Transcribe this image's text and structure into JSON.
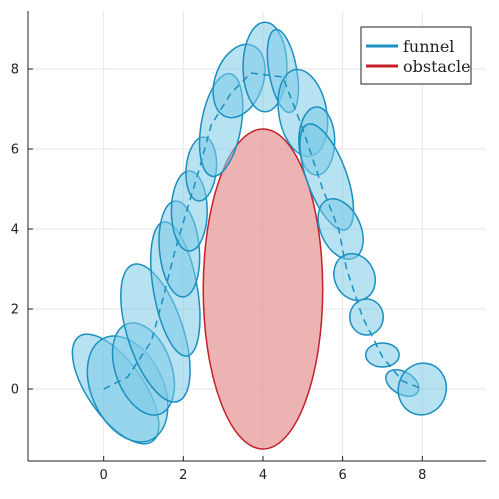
{
  "chart_data": {
    "type": "scatter",
    "xlim": [
      -1.9,
      9.6
    ],
    "ylim": [
      -1.8,
      9.45
    ],
    "xticks": [
      0,
      2,
      4,
      6,
      8
    ],
    "yticks": [
      0,
      2,
      4,
      6,
      8
    ],
    "xtick_labels": [
      "0",
      "2",
      "4",
      "6",
      "8"
    ],
    "ytick_labels": [
      "0",
      "2",
      "4",
      "6",
      "8"
    ],
    "grid": true,
    "legend_position": "top-right",
    "legend": [
      {
        "label": "funnel",
        "color": "#1a8fc0"
      },
      {
        "label": "obstacle",
        "color": "#c4202a"
      }
    ],
    "colors": {
      "funnel_stroke": "#1a8fc0",
      "funnel_fill": "#7ccbe6",
      "obstacle_stroke": "#c4202a",
      "obstacle_fill": "#e8a0a0"
    },
    "series": [
      {
        "name": "funnel",
        "path": [
          [
            0.0,
            0.0
          ],
          [
            0.6,
            0.3
          ],
          [
            1.2,
            1.2
          ],
          [
            1.5,
            2.3
          ],
          [
            1.8,
            3.5
          ],
          [
            2.1,
            4.5
          ],
          [
            2.4,
            5.5
          ],
          [
            2.7,
            6.6
          ],
          [
            3.2,
            7.4
          ],
          [
            3.7,
            7.9
          ],
          [
            4.5,
            7.8
          ],
          [
            5.0,
            6.5
          ],
          [
            5.5,
            5.0
          ],
          [
            5.9,
            4.0
          ],
          [
            6.1,
            3.0
          ],
          [
            6.5,
            1.8
          ],
          [
            7.0,
            0.8
          ],
          [
            7.5,
            0.2
          ],
          [
            8.0,
            0.0
          ]
        ],
        "ellipses": [
          {
            "cx": 0.3,
            "cy": 0.0,
            "rx": 0.7,
            "ry": 1.6,
            "angle": 35
          },
          {
            "cx": 0.6,
            "cy": 0.0,
            "rx": 0.9,
            "ry": 1.4,
            "angle": 25
          },
          {
            "cx": 1.0,
            "cy": 0.5,
            "rx": 0.7,
            "ry": 1.2,
            "angle": 20
          },
          {
            "cx": 1.3,
            "cy": 1.4,
            "rx": 0.7,
            "ry": 1.8,
            "angle": 18
          },
          {
            "cx": 1.8,
            "cy": 2.5,
            "rx": 0.55,
            "ry": 1.7,
            "angle": 10
          },
          {
            "cx": 1.9,
            "cy": 3.5,
            "rx": 0.5,
            "ry": 1.2,
            "angle": 5
          },
          {
            "cx": 2.15,
            "cy": 4.45,
            "rx": 0.45,
            "ry": 1.0,
            "angle": 0
          },
          {
            "cx": 2.45,
            "cy": 5.5,
            "rx": 0.38,
            "ry": 0.8,
            "angle": -5
          },
          {
            "cx": 2.95,
            "cy": 6.6,
            "rx": 0.5,
            "ry": 1.3,
            "angle": -10
          },
          {
            "cx": 3.4,
            "cy": 7.7,
            "rx": 0.6,
            "ry": 0.95,
            "angle": -20
          },
          {
            "cx": 4.05,
            "cy": 8.05,
            "rx": 0.55,
            "ry": 1.12,
            "angle": 0
          },
          {
            "cx": 4.5,
            "cy": 7.95,
            "rx": 0.35,
            "ry": 1.05,
            "angle": 10
          },
          {
            "cx": 5.0,
            "cy": 6.9,
            "rx": 0.6,
            "ry": 1.1,
            "angle": 10
          },
          {
            "cx": 5.35,
            "cy": 6.2,
            "rx": 0.45,
            "ry": 0.85,
            "angle": 0
          },
          {
            "cx": 5.6,
            "cy": 5.3,
            "rx": 0.5,
            "ry": 1.4,
            "angle": 20
          },
          {
            "cx": 5.95,
            "cy": 4.0,
            "rx": 0.5,
            "ry": 0.8,
            "angle": 25
          },
          {
            "cx": 6.3,
            "cy": 2.8,
            "rx": 0.5,
            "ry": 0.6,
            "angle": 25
          },
          {
            "cx": 6.6,
            "cy": 1.8,
            "rx": 0.42,
            "ry": 0.45,
            "angle": 0
          },
          {
            "cx": 7.0,
            "cy": 0.85,
            "rx": 0.42,
            "ry": 0.3,
            "angle": 0
          },
          {
            "cx": 7.5,
            "cy": 0.15,
            "rx": 0.45,
            "ry": 0.28,
            "angle": -30
          },
          {
            "cx": 8.0,
            "cy": 0.0,
            "rx": 0.6,
            "ry": 0.65,
            "angle": -15
          }
        ]
      },
      {
        "name": "obstacle",
        "ellipse": {
          "cx": 4.0,
          "cy": 2.5,
          "rx": 1.5,
          "ry": 4.0,
          "angle": 0
        }
      }
    ]
  }
}
